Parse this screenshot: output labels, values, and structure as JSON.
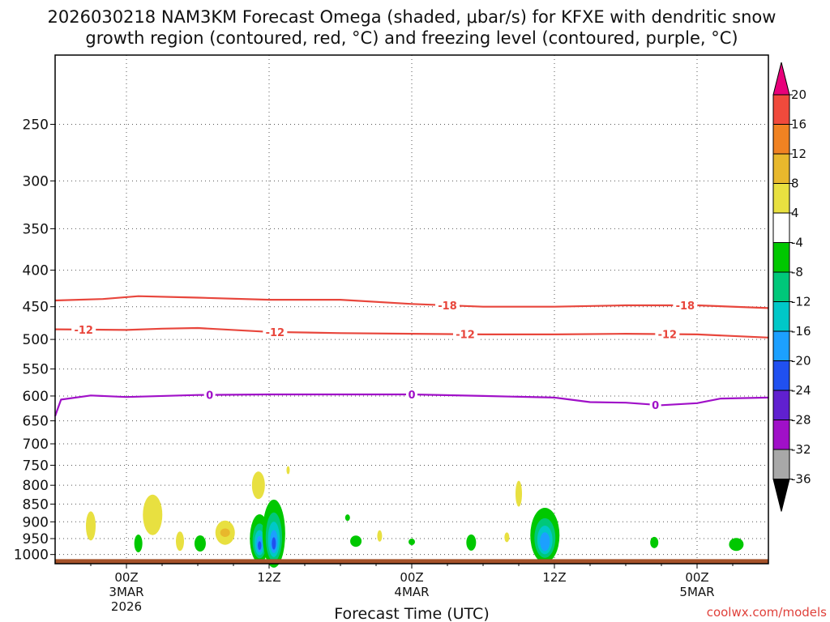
{
  "chart_data": {
    "type": "time-height contour plot",
    "title_line1": "2026030218 NAM3KM Forecast Omega (shaded, μbar/s) for KFXE with dendritic snow",
    "title_line2": "growth region (contoured, red, °C) and freezing level (contoured, purple, °C)",
    "xlabel": "Forecast Time (UTC)",
    "credit": "coolwx.com/models",
    "x_range_hours": [
      -6,
      54
    ],
    "y_axis": {
      "type": "pressure",
      "units": "hPa",
      "range": [
        1030,
        200
      ],
      "ticks": [
        250,
        300,
        350,
        400,
        450,
        500,
        550,
        600,
        650,
        700,
        750,
        800,
        850,
        900,
        950,
        1000
      ]
    },
    "x_ticks": [
      {
        "hour": 0,
        "line1": "00Z",
        "line2": "3MAR",
        "line3": "2026"
      },
      {
        "hour": 12,
        "line1": "12Z",
        "line2": "",
        "line3": ""
      },
      {
        "hour": 24,
        "line1": "00Z",
        "line2": "4MAR",
        "line3": ""
      },
      {
        "hour": 36,
        "line1": "12Z",
        "line2": "",
        "line3": ""
      },
      {
        "hour": 48,
        "line1": "00Z",
        "line2": "5MAR",
        "line3": ""
      }
    ],
    "colorbar": {
      "labels": [
        "20",
        "16",
        "12",
        "8",
        "4",
        "-4",
        "-8",
        "-12",
        "-16",
        "-20",
        "-24",
        "-28",
        "-32",
        "-36"
      ],
      "colors": [
        "#e8007a",
        "#f04a3c",
        "#f08222",
        "#e8b82c",
        "#e8e040",
        "#ffffff",
        "#00c800",
        "#00c87a",
        "#00c8c8",
        "#1ca0ff",
        "#2050f0",
        "#6020d0",
        "#a010c8",
        "#a8a8a8",
        "#000000"
      ]
    },
    "contours": [
      {
        "name": "-18C",
        "color": "#e8463c",
        "label": "-18",
        "label_hours": [
          27,
          47
        ],
        "points": [
          [
            -6,
            441
          ],
          [
            -2,
            439
          ],
          [
            1,
            435
          ],
          [
            6,
            437
          ],
          [
            12,
            440
          ],
          [
            18,
            440
          ],
          [
            24,
            446
          ],
          [
            30,
            450
          ],
          [
            36,
            450
          ],
          [
            42,
            448
          ],
          [
            48,
            448
          ],
          [
            54,
            452
          ]
        ]
      },
      {
        "name": "-12C",
        "color": "#e8463c",
        "label": "-12",
        "label_hours": [
          -3.6,
          12.5,
          28.5,
          45.5
        ],
        "points": [
          [
            -6,
            484
          ],
          [
            0,
            485
          ],
          [
            3,
            483
          ],
          [
            6,
            482
          ],
          [
            12,
            488
          ],
          [
            18,
            490
          ],
          [
            24,
            491
          ],
          [
            30,
            492
          ],
          [
            36,
            492
          ],
          [
            42,
            491
          ],
          [
            48,
            492
          ],
          [
            54,
            497
          ]
        ]
      },
      {
        "name": "0C freezing level",
        "color": "#a010c8",
        "label": "0",
        "label_hours": [
          7,
          24,
          44.5
        ],
        "points": [
          [
            -6,
            640
          ],
          [
            -5.5,
            607
          ],
          [
            -3,
            599
          ],
          [
            0,
            602
          ],
          [
            6,
            598
          ],
          [
            12,
            597
          ],
          [
            18,
            597
          ],
          [
            24,
            597
          ],
          [
            30,
            600
          ],
          [
            36,
            603
          ],
          [
            39,
            612
          ],
          [
            42,
            613
          ],
          [
            45,
            618
          ],
          [
            48,
            614
          ],
          [
            50,
            605
          ],
          [
            54,
            603
          ]
        ]
      }
    ],
    "omega_blobs": [
      {
        "hour": -3,
        "p": 912,
        "rx": 6,
        "ry": 18,
        "value": 6
      },
      {
        "hour": 2.2,
        "p": 880,
        "rx": 12,
        "ry": 25,
        "value": 6
      },
      {
        "hour": 1,
        "p": 965,
        "rx": 5,
        "ry": 11,
        "value": -6
      },
      {
        "hour": 4.5,
        "p": 958,
        "rx": 5,
        "ry": 12,
        "value": 6
      },
      {
        "hour": 6.2,
        "p": 965,
        "rx": 7,
        "ry": 10,
        "value": -6
      },
      {
        "hour": 8.3,
        "p": 932,
        "rx": 12,
        "ry": 15,
        "value": 8
      },
      {
        "hour": 11.2,
        "p": 950,
        "rx": 12,
        "ry": 30,
        "value": -22
      },
      {
        "hour": 12.4,
        "p": 935,
        "rx": 14,
        "ry": 42,
        "value": -20
      },
      {
        "hour": 11.1,
        "p": 800,
        "rx": 8,
        "ry": 17,
        "value": 6
      },
      {
        "hour": 13.6,
        "p": 762,
        "rx": 2,
        "ry": 5,
        "value": 6
      },
      {
        "hour": 18.6,
        "p": 888,
        "rx": 3,
        "ry": 4,
        "value": -6
      },
      {
        "hour": 21.3,
        "p": 942,
        "rx": 3,
        "ry": 7,
        "value": 6
      },
      {
        "hour": 19.3,
        "p": 958,
        "rx": 7,
        "ry": 7,
        "value": -6
      },
      {
        "hour": 24,
        "p": 960,
        "rx": 4,
        "ry": 4,
        "value": -6
      },
      {
        "hour": 29,
        "p": 962,
        "rx": 6,
        "ry": 10,
        "value": -6
      },
      {
        "hour": 33,
        "p": 822,
        "rx": 4,
        "ry": 16,
        "value": 6
      },
      {
        "hour": 32,
        "p": 946,
        "rx": 3,
        "ry": 6,
        "value": 6
      },
      {
        "hour": 35.2,
        "p": 940,
        "rx": 18,
        "ry": 34,
        "value": -18
      },
      {
        "hour": 44.4,
        "p": 962,
        "rx": 5,
        "ry": 7,
        "value": -6
      },
      {
        "hour": 51.3,
        "p": 968,
        "rx": 9,
        "ry": 8,
        "value": -6
      }
    ],
    "ground": {
      "color": "#a5522a",
      "from_p": 1015
    }
  }
}
